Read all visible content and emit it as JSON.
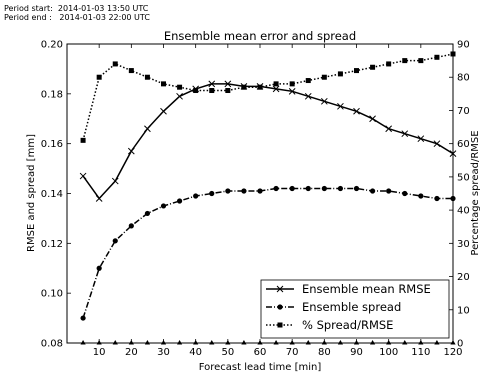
{
  "header": {
    "period_start": "Period start:  2014-01-03 13:50 UTC",
    "period_end": "Period end :   2014-01-03 22:00 UTC"
  },
  "chart_data": {
    "type": "line",
    "title": "Ensemble mean error and spread",
    "xlabel": "Forecast lead time [min]",
    "ylabel_left": "RMSE and spread [mm]",
    "ylabel_right": "Percentage spread/RMSE",
    "xlim": [
      0,
      120
    ],
    "ylim_left": [
      0.08,
      0.2
    ],
    "ylim_right": [
      0,
      90
    ],
    "x_ticks": [
      10,
      20,
      30,
      40,
      50,
      60,
      70,
      80,
      90,
      100,
      110,
      120
    ],
    "y_ticks_left": [
      0.08,
      0.1,
      0.12,
      0.14,
      0.16,
      0.18,
      0.2
    ],
    "y_tick_labels_left": [
      "0.08",
      "0.10",
      "0.12",
      "0.14",
      "0.16",
      "0.18",
      "0.20"
    ],
    "y_ticks_right": [
      0,
      10,
      20,
      30,
      40,
      50,
      60,
      70,
      80,
      90
    ],
    "grid": false,
    "legend_position": "bottom-right",
    "x": [
      5,
      10,
      15,
      20,
      25,
      30,
      35,
      40,
      45,
      50,
      55,
      60,
      65,
      70,
      75,
      80,
      85,
      90,
      95,
      100,
      105,
      110,
      115,
      120
    ],
    "series": [
      {
        "name": "Ensemble mean RMSE",
        "axis": "left",
        "style": "solid",
        "marker": "x",
        "color": "#000000",
        "values": [
          0.147,
          0.138,
          0.145,
          0.157,
          0.166,
          0.173,
          0.179,
          0.182,
          0.184,
          0.184,
          0.183,
          0.183,
          0.182,
          0.181,
          0.179,
          0.177,
          0.175,
          0.173,
          0.17,
          0.166,
          0.164,
          0.162,
          0.16,
          0.156
        ]
      },
      {
        "name": "Ensemble spread",
        "axis": "left",
        "style": "dashdot",
        "marker": "circle",
        "color": "#000000",
        "values": [
          0.09,
          0.11,
          0.121,
          0.127,
          0.132,
          0.135,
          0.137,
          0.139,
          0.14,
          0.141,
          0.141,
          0.141,
          0.142,
          0.142,
          0.142,
          0.142,
          0.142,
          0.142,
          0.141,
          0.141,
          0.14,
          0.139,
          0.138,
          0.138
        ]
      },
      {
        "name": "% Spread/RMSE",
        "axis": "right",
        "style": "dotted",
        "marker": "square",
        "color": "#000000",
        "values": [
          61,
          80,
          84,
          82,
          80,
          78,
          77,
          76,
          76,
          76,
          77,
          77,
          78,
          78,
          79,
          80,
          81,
          82,
          83,
          84,
          85,
          85,
          86,
          87
        ]
      },
      {
        "name": "",
        "axis": "right",
        "style": "none",
        "marker": "triangle",
        "color": "#000000",
        "values": [
          0,
          0,
          0,
          0,
          0,
          0,
          0,
          0,
          0,
          0,
          0,
          0,
          0,
          0,
          0,
          0,
          0,
          0,
          0,
          0,
          0,
          0,
          0,
          0
        ]
      }
    ]
  }
}
